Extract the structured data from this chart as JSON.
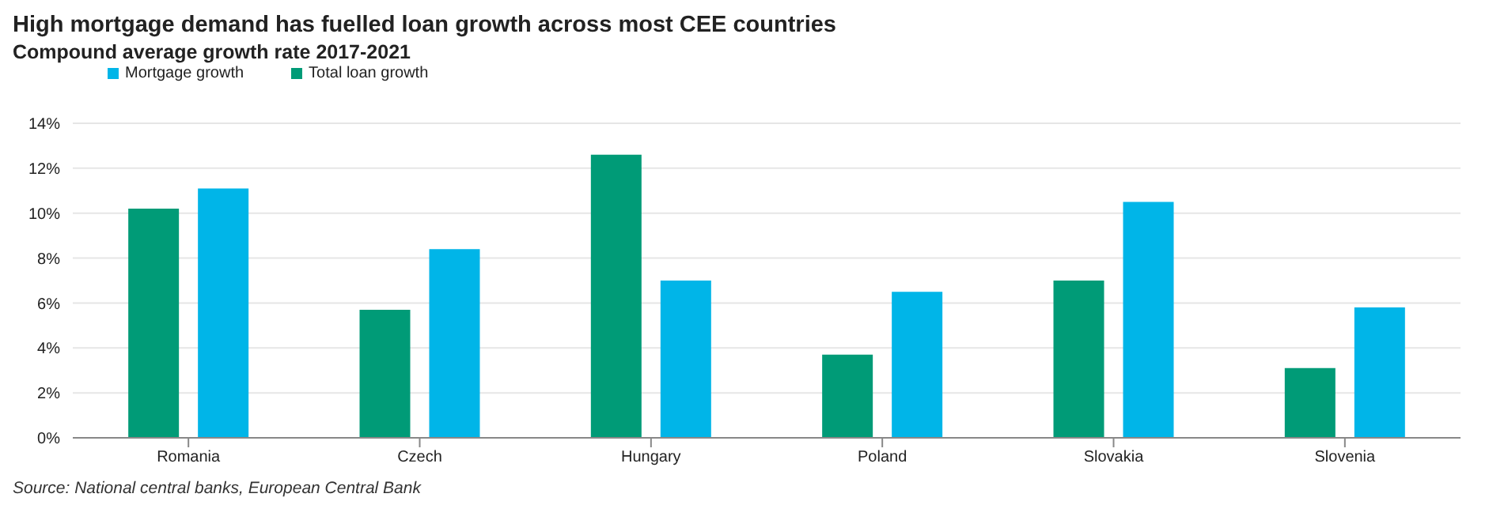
{
  "chart_data": {
    "type": "bar",
    "title": "High mortgage demand has fuelled loan growth across most CEE countries",
    "subtitle": "Compound average growth rate 2017-2021",
    "categories": [
      "Romania",
      "Czech",
      "Hungary",
      "Poland",
      "Slovakia",
      "Slovenia"
    ],
    "series": [
      {
        "name": "Total loan growth",
        "color": "#009b77",
        "values": [
          10.2,
          5.7,
          12.6,
          3.7,
          7.0,
          3.1
        ]
      },
      {
        "name": "Mortgage growth",
        "color": "#00b5e8",
        "values": [
          11.1,
          8.4,
          7.0,
          6.5,
          10.5,
          5.8
        ]
      }
    ],
    "ylim": [
      0,
      14
    ],
    "yticks": [
      {
        "value": 0,
        "label": "0%"
      },
      {
        "value": 2,
        "label": "2%"
      },
      {
        "value": 4,
        "label": "4%"
      },
      {
        "value": 6,
        "label": "6%"
      },
      {
        "value": 8,
        "label": "8%"
      },
      {
        "value": 10,
        "label": "10%"
      },
      {
        "value": 12,
        "label": "12%"
      },
      {
        "value": 14,
        "label": "14%"
      }
    ],
    "grid": "y",
    "legend": "top left",
    "annotations": [
      "Source: National central banks, European Central Bank"
    ]
  }
}
